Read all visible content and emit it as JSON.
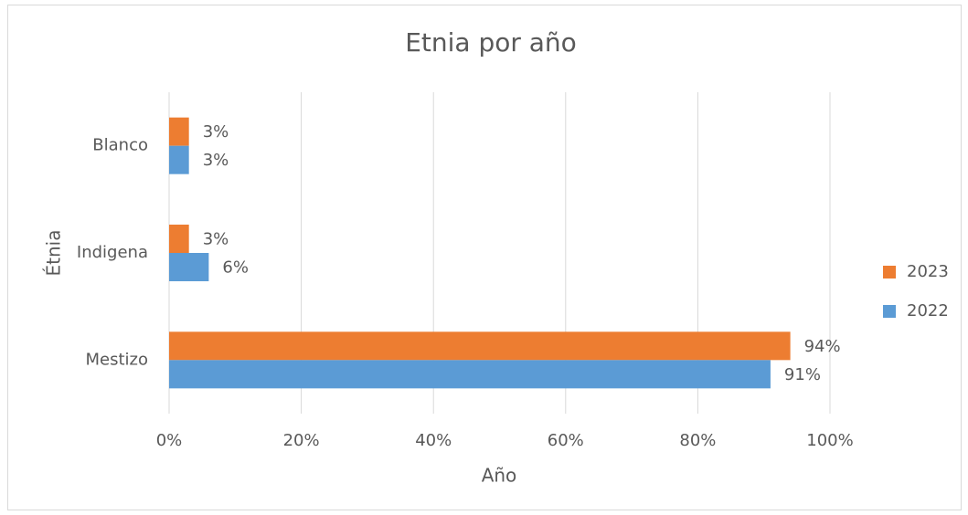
{
  "chart_data": {
    "type": "hbar",
    "title": "Etnia por año",
    "xlabel": "Año",
    "ylabel": "Étnia",
    "categories": [
      "Blanco",
      "Indigena",
      "Mestizo"
    ],
    "series": [
      {
        "name": "2023",
        "color": "#ed7d31",
        "values": [
          3,
          3,
          94
        ],
        "value_labels": [
          "3%",
          "3%",
          "94%"
        ]
      },
      {
        "name": "2022",
        "color": "#5b9bd5",
        "values": [
          3,
          6,
          91
        ],
        "value_labels": [
          "3%",
          "6%",
          "91%"
        ]
      }
    ],
    "xlim": [
      0,
      100
    ],
    "xticks": [
      {
        "value": 0,
        "label": "0%"
      },
      {
        "value": 20,
        "label": "20%"
      },
      {
        "value": 40,
        "label": "40%"
      },
      {
        "value": 60,
        "label": "60%"
      },
      {
        "value": 80,
        "label": "80%"
      },
      {
        "value": 100,
        "label": "100%"
      }
    ],
    "grid": true,
    "legend": "right"
  }
}
